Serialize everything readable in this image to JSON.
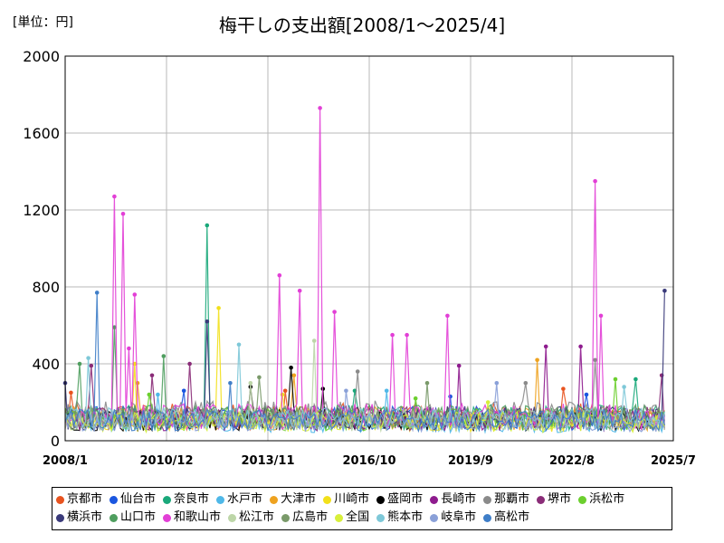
{
  "header": {
    "unit": "[単位：円]"
  },
  "chart_data": {
    "type": "line",
    "title": "梅干しの支出額[2008/1～2025/4]",
    "ylabel": "単位：円",
    "ylim": [
      0,
      2000
    ],
    "yticks": [
      0,
      400,
      800,
      1200,
      1600,
      2000
    ],
    "xrange": [
      "2008/1",
      "2025/7"
    ],
    "xticks": [
      "2008/1",
      "2010/12",
      "2013/11",
      "2016/10",
      "2019/9",
      "2022/8",
      "2025/7"
    ],
    "grid": true,
    "legend_position": "bottom",
    "series": [
      {
        "name": "京都市",
        "color": "#e8531f",
        "base": 130,
        "peaks": [
          [
            "2008/3",
            250
          ],
          [
            "2014/5",
            260
          ],
          [
            "2022/5",
            270
          ]
        ]
      },
      {
        "name": "仙台市",
        "color": "#1a56e0",
        "base": 120,
        "peaks": [
          [
            "2011/6",
            260
          ],
          [
            "2019/2",
            230
          ],
          [
            "2023/1",
            240
          ]
        ]
      },
      {
        "name": "奈良市",
        "color": "#1aa87a",
        "base": 125,
        "peaks": [
          [
            "2012/2",
            1120
          ],
          [
            "2016/5",
            260
          ],
          [
            "2024/6",
            320
          ]
        ]
      },
      {
        "name": "水戸市",
        "color": "#4fb8e8",
        "base": 95,
        "peaks": [
          [
            "2010/9",
            240
          ],
          [
            "2017/4",
            260
          ]
        ]
      },
      {
        "name": "大津市",
        "color": "#eea21f",
        "base": 120,
        "peaks": [
          [
            "2021/8",
            420
          ],
          [
            "2010/2",
            300
          ],
          [
            "2014/8",
            340
          ]
        ]
      },
      {
        "name": "川崎市",
        "color": "#f2e01a",
        "base": 105,
        "peaks": [
          [
            "2012/6",
            690
          ],
          [
            "2010/1",
            400
          ],
          [
            "2014/4",
            240
          ]
        ]
      },
      {
        "name": "盛岡市",
        "color": "#000000",
        "base": 110,
        "peaks": [
          [
            "2014/7",
            380
          ],
          [
            "2013/5",
            280
          ],
          [
            "2015/6",
            270
          ]
        ]
      },
      {
        "name": "長崎市",
        "color": "#8e1b8e",
        "base": 115,
        "peaks": [
          [
            "2021/11",
            490
          ],
          [
            "2022/11",
            490
          ],
          [
            "2019/5",
            390
          ]
        ]
      },
      {
        "name": "那覇市",
        "color": "#8a8a8a",
        "base": 140,
        "peaks": [
          [
            "2016/6",
            360
          ],
          [
            "2021/4",
            300
          ],
          [
            "2023/4",
            420
          ]
        ]
      },
      {
        "name": "堺市",
        "color": "#8a2c78",
        "base": 120,
        "peaks": [
          [
            "2008/10",
            390
          ],
          [
            "2010/7",
            340
          ],
          [
            "2011/8",
            400
          ],
          [
            "2025/3",
            340
          ]
        ]
      },
      {
        "name": "浜松市",
        "color": "#6ccf2e",
        "base": 115,
        "peaks": [
          [
            "2010/6",
            240
          ],
          [
            "2023/11",
            320
          ],
          [
            "2018/2",
            220
          ]
        ]
      },
      {
        "name": "横浜市",
        "color": "#3a3a7a",
        "base": 120,
        "peaks": [
          [
            "2025/4",
            780
          ],
          [
            "2012/2",
            620
          ],
          [
            "2008/1",
            300
          ]
        ]
      },
      {
        "name": "山口市",
        "color": "#4f9e5f",
        "base": 125,
        "peaks": [
          [
            "2009/6",
            590
          ],
          [
            "2010/11",
            440
          ],
          [
            "2008/6",
            400
          ]
        ]
      },
      {
        "name": "和歌山市",
        "color": "#e23fd6",
        "base": 130,
        "peaks": [
          [
            "2009/6",
            1270
          ],
          [
            "2009/9",
            1180
          ],
          [
            "2010/1",
            760
          ],
          [
            "2014/3",
            860
          ],
          [
            "2014/10",
            780
          ],
          [
            "2015/5",
            1730
          ],
          [
            "2015/10",
            670
          ],
          [
            "2019/1",
            650
          ],
          [
            "2023/4",
            1350
          ],
          [
            "2023/6",
            650
          ],
          [
            "2017/6",
            550
          ],
          [
            "2017/11",
            550
          ],
          [
            "2009/11",
            480
          ]
        ]
      },
      {
        "name": "松江市",
        "color": "#bdd6a8",
        "base": 110,
        "peaks": [
          [
            "2015/3",
            520
          ],
          [
            "2013/5",
            300
          ]
        ]
      },
      {
        "name": "広島市",
        "color": "#7a9a6a",
        "base": 120,
        "peaks": [
          [
            "2013/8",
            330
          ],
          [
            "2018/6",
            300
          ]
        ]
      },
      {
        "name": "全国",
        "color": "#d8ef3a",
        "base": 100,
        "peaks": [
          [
            "2020/3",
            200
          ]
        ]
      },
      {
        "name": "熊本市",
        "color": "#7ec8d8",
        "base": 115,
        "peaks": [
          [
            "2008/9",
            430
          ],
          [
            "2013/1",
            500
          ],
          [
            "2024/2",
            280
          ]
        ]
      },
      {
        "name": "岐阜市",
        "color": "#8aa0d8",
        "base": 105,
        "peaks": [
          [
            "2016/2",
            260
          ],
          [
            "2020/6",
            300
          ]
        ]
      },
      {
        "name": "高松市",
        "color": "#3f7ec8",
        "base": 110,
        "peaks": [
          [
            "2008/12",
            770
          ],
          [
            "2012/10",
            300
          ]
        ]
      }
    ]
  }
}
